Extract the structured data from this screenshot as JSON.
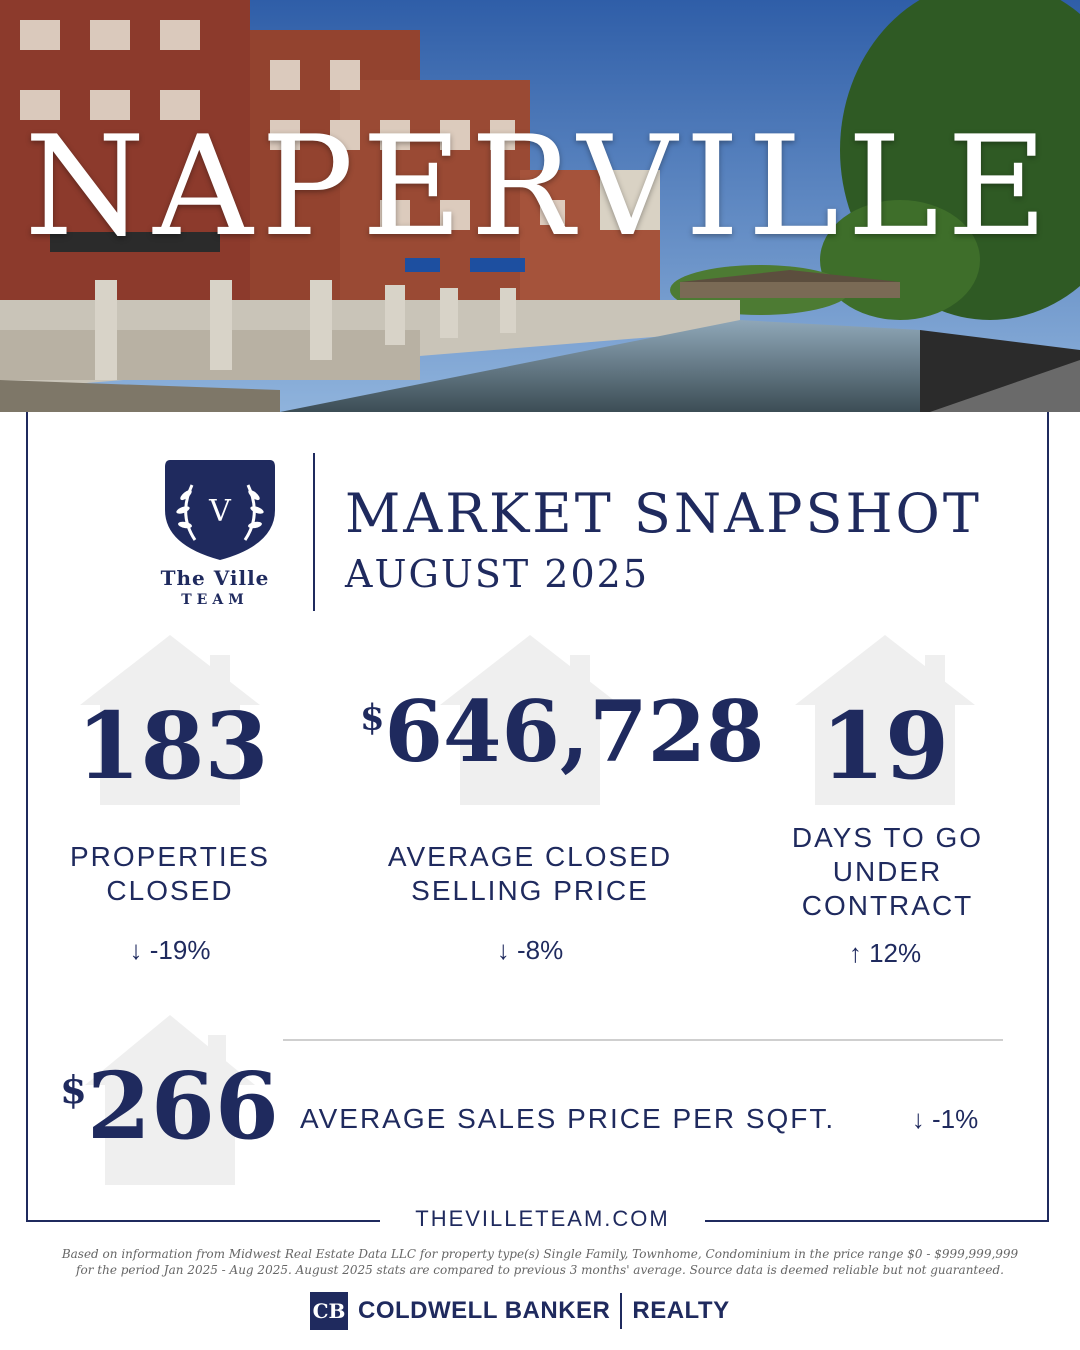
{
  "hero": {
    "city": "NAPERVILLE"
  },
  "logo": {
    "initial": "V",
    "line1": "The Ville",
    "line2": "TEAM"
  },
  "header": {
    "title": "MARKET SNAPSHOT",
    "date": "AUGUST 2025"
  },
  "stats": {
    "closed": {
      "value": "183",
      "label_line1": "PROPERTIES",
      "label_line2": "CLOSED",
      "arrow": "↓",
      "change": "-19%"
    },
    "price": {
      "currency": "$",
      "value": "646,728",
      "label_line1": "AVERAGE CLOSED",
      "label_line2": "SELLING PRICE",
      "arrow": "↓",
      "change": "-8%"
    },
    "days": {
      "value": "19",
      "label_line1": "DAYS TO GO",
      "label_line2": "UNDER",
      "label_line3": "CONTRACT",
      "arrow": "↑",
      "change": "12%"
    },
    "sqft": {
      "currency": "$",
      "value": "266",
      "label": "AVERAGE SALES PRICE PER SQFT.",
      "arrow": "↓",
      "change": "-1%"
    }
  },
  "footer": {
    "website": "THEVILLETEAM.COM",
    "disclaimer_line1": "Based on information from Midwest Real Estate Data LLC for property type(s) Single Family, Townhome, Condominium in the price range $0 - $999,999,999",
    "disclaimer_line2": "for the period Jan 2025 - Aug 2025. August 2025 stats are compared to previous 3 months' average. Source data is deemed reliable but not guaranteed.",
    "brand_icon": "CB",
    "brand_name": "COLDWELL BANKER",
    "brand_sub": "REALTY"
  },
  "colors": {
    "navy": "#1f2a5e",
    "house_gray": "#efefef",
    "sky": "#3f6fb5",
    "brick": "#8c3a2c"
  }
}
